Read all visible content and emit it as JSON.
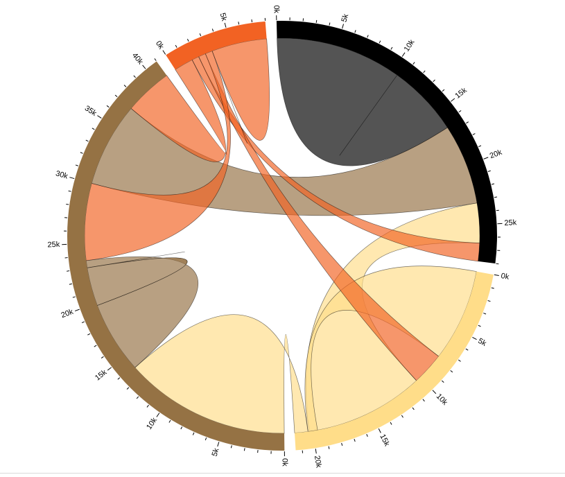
{
  "chart_data": {
    "type": "chord",
    "groups": [
      {
        "id": "black",
        "color": "#000000",
        "total": 28000
      },
      {
        "id": "yellow",
        "color": "#ffdd89",
        "total": 21500
      },
      {
        "id": "brown",
        "color": "#957244",
        "total": 41000
      },
      {
        "id": "orange",
        "color": "#f26223",
        "total": 8000
      }
    ],
    "tick_step": 1000,
    "label_step": 5000,
    "tick_label_suffix": "k",
    "chords": [
      {
        "source": "black",
        "target": "black",
        "source_range": [
          0,
          10500
        ],
        "target_range": [
          10500,
          16500
        ],
        "color": "#000000"
      },
      {
        "source": "brown",
        "target": "black",
        "source_range": [
          30000,
          37000
        ],
        "target_range": [
          16500,
          23200
        ],
        "color": "#957244"
      },
      {
        "source": "yellow",
        "target": "black",
        "source_range": [
          10400,
          20300
        ],
        "target_range": [
          23200,
          26500
        ],
        "color": "#ffdd89"
      },
      {
        "source": "orange",
        "target": "black",
        "source_range": [
          1600,
          2200
        ],
        "target_range": [
          26500,
          28000
        ],
        "color": "#f26223"
      },
      {
        "source": "yellow",
        "target": "yellow",
        "source_range": [
          0,
          7700
        ],
        "target_range": [
          19600,
          20400
        ],
        "color": "#ffdd89"
      },
      {
        "source": "orange",
        "target": "yellow",
        "source_range": [
          2200,
          2800
        ],
        "target_range": [
          7700,
          10400
        ],
        "color": "#f26223"
      },
      {
        "source": "brown",
        "target": "yellow",
        "source_range": [
          0,
          13800
        ],
        "target_range": [
          20400,
          21500
        ],
        "color": "#ffdd89"
      },
      {
        "source": "brown",
        "target": "brown",
        "source_range": [
          13800,
          19800
        ],
        "target_range": [
          23000,
          23600
        ],
        "color": "#957244"
      },
      {
        "source": "brown",
        "target": "brown",
        "source_range": [
          19800,
          23000
        ],
        "target_range": [
          23000,
          23000
        ],
        "color": "#957244"
      },
      {
        "source": "orange",
        "target": "brown",
        "source_range": [
          2800,
          3400
        ],
        "target_range": [
          23600,
          30000
        ],
        "color": "#f26223"
      },
      {
        "source": "orange",
        "target": "brown",
        "source_range": [
          0,
          1600
        ],
        "target_range": [
          37000,
          41000
        ],
        "color": "#f26223"
      },
      {
        "source": "orange",
        "target": "orange",
        "source_range": [
          3400,
          8000
        ],
        "target_range": [
          3400,
          3400
        ],
        "color": "#f26223"
      }
    ]
  }
}
